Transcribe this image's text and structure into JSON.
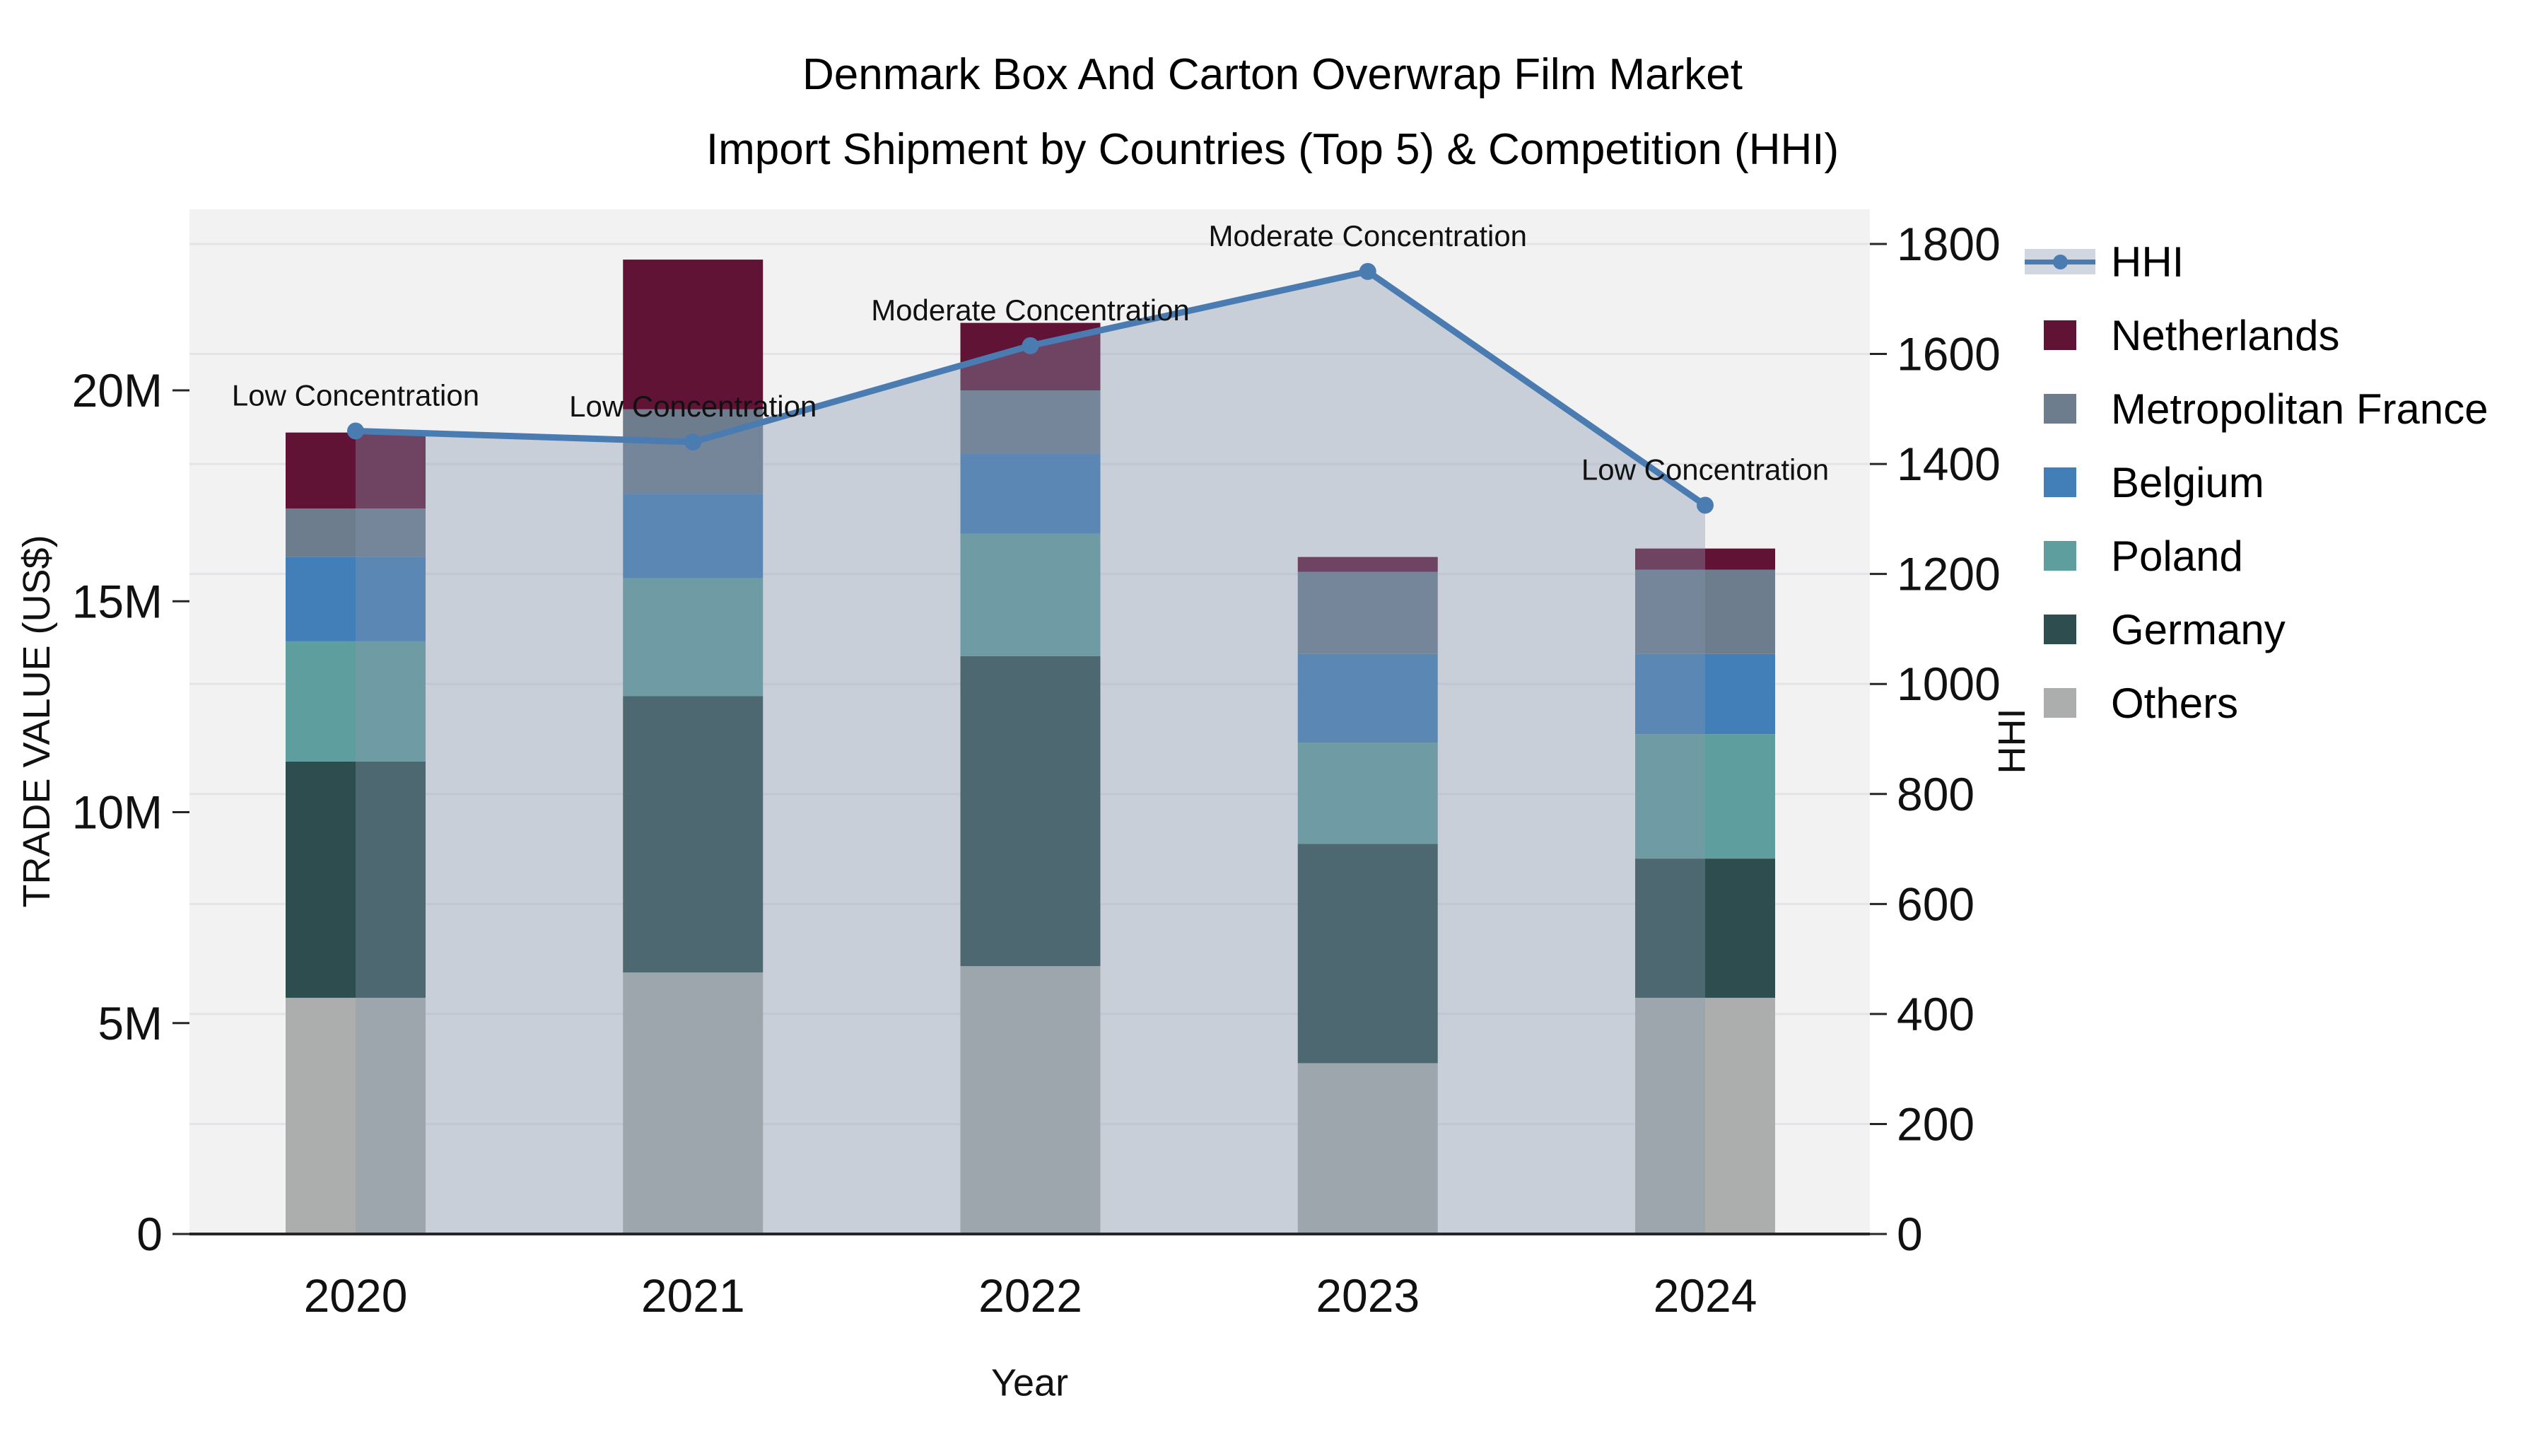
{
  "title": {
    "line1": "Denmark Box And Carton Overwrap Film Market",
    "line2": "Import Shipment by Countries (Top 5) & Competition (HHI)"
  },
  "axes": {
    "x_label": "Year",
    "y_left_label": "TRADE VALUE (US$)",
    "y_right_label": "HHI",
    "y_left_ticks": [
      "0",
      "5M",
      "10M",
      "15M",
      "20M"
    ],
    "y_left_tick_values_musd": [
      0,
      5,
      10,
      15,
      20
    ],
    "y_right_ticks": [
      "0",
      "200",
      "400",
      "600",
      "800",
      "1000",
      "1200",
      "1400",
      "1600",
      "1800"
    ],
    "y_right_tick_values": [
      0,
      200,
      400,
      600,
      800,
      1000,
      1200,
      1400,
      1600,
      1800
    ]
  },
  "chart_data": {
    "type": "combo: stacked bar (left axis) + line with area fill (right axis)",
    "categories": [
      "2020",
      "2021",
      "2022",
      "2023",
      "2024"
    ],
    "unit": "Trade value in millions of US$; HHI in index points",
    "series": [
      {
        "name": "Others",
        "color": "#abaead",
        "values_musd": [
          5.6,
          6.2,
          6.35,
          4.05,
          5.6
        ]
      },
      {
        "name": "Germany",
        "color": "#2d4d4e",
        "values_musd": [
          5.6,
          6.55,
          7.35,
          5.2,
          3.3
        ]
      },
      {
        "name": "Poland",
        "color": "#5f9e9e",
        "values_musd": [
          2.85,
          2.8,
          2.9,
          2.4,
          2.95
        ]
      },
      {
        "name": "Belgium",
        "color": "#427fb8",
        "values_musd": [
          2.0,
          2.0,
          1.9,
          2.1,
          1.9
        ]
      },
      {
        "name": "Metropolitan France",
        "color": "#6d7d8e",
        "values_musd": [
          1.15,
          2.0,
          1.5,
          1.95,
          2.0
        ]
      },
      {
        "name": "Netherlands",
        "color": "#611336",
        "values_musd": [
          1.8,
          3.55,
          1.6,
          0.35,
          0.5
        ]
      }
    ],
    "bar_totals_musd": [
      19.0,
      23.1,
      21.6,
      16.05,
      16.25
    ],
    "line_series": {
      "name": "HHI",
      "axis": "right",
      "values": [
        1460,
        1440,
        1615,
        1750,
        1325
      ],
      "color": "#4a7cb2",
      "fill_color": "rgba(133,151,173,0.38)",
      "legend_band_color": "#d1d7e0"
    },
    "annotations": [
      "Low Concentration",
      "Low Concentration",
      "Moderate Concentration",
      "Moderate Concentration",
      "Low Concentration"
    ],
    "title": "Denmark Box And Carton Overwrap Film Market Import Shipment by Countries (Top 5) & Competition (HHI)",
    "xlabel": "Year",
    "ylabel_left": "TRADE VALUE (US$)",
    "ylabel_right": "HHI",
    "ylim_left_musd": [
      0,
      24.3
    ],
    "ylim_right": [
      0,
      1863
    ],
    "grid": "horizontal gridlines at every 200 HHI (right axis), legend outside top-right"
  },
  "legend": {
    "items": [
      {
        "label": "HHI",
        "type": "line",
        "color": "#4a7cb2"
      },
      {
        "label": "Netherlands",
        "type": "patch",
        "color": "#611336"
      },
      {
        "label": "Metropolitan France",
        "type": "patch",
        "color": "#6d7d8e"
      },
      {
        "label": "Belgium",
        "type": "patch",
        "color": "#427fb8"
      },
      {
        "label": "Poland",
        "type": "patch",
        "color": "#5f9e9e"
      },
      {
        "label": "Germany",
        "type": "patch",
        "color": "#2d4d4e"
      },
      {
        "label": "Others",
        "type": "patch",
        "color": "#abaead"
      }
    ]
  },
  "plot_style": {
    "plot_bg": "#f2f2f2",
    "gridline_color": "#e4e4e8",
    "spine_color": "#262626"
  }
}
